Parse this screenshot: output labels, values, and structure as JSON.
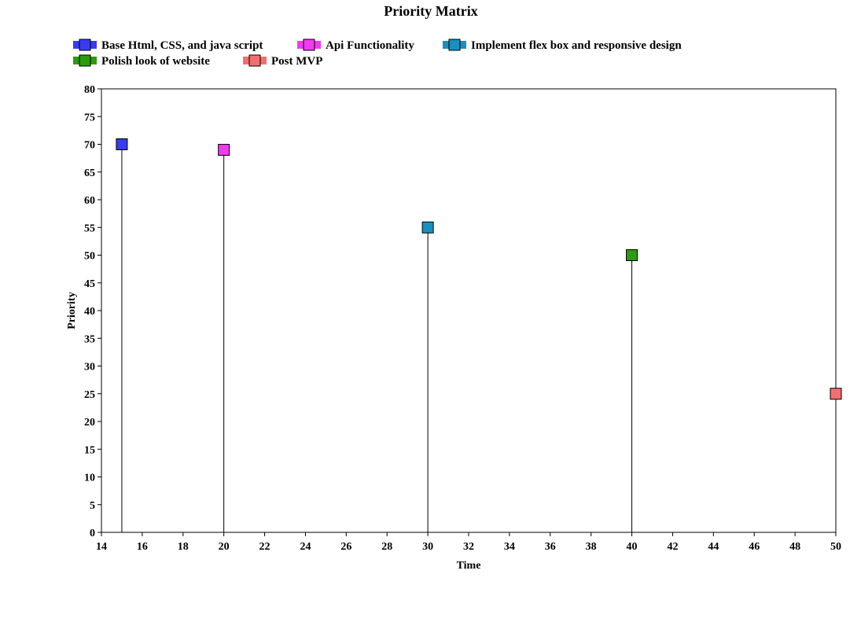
{
  "chart_data": {
    "type": "scatter",
    "title": "Priority Matrix",
    "xlabel": "Time",
    "ylabel": "Priority",
    "xlim": [
      14,
      50
    ],
    "ylim": [
      0,
      80
    ],
    "x_ticks": [
      14,
      16,
      18,
      20,
      22,
      24,
      26,
      28,
      30,
      32,
      34,
      36,
      38,
      40,
      42,
      44,
      46,
      48,
      50
    ],
    "y_ticks": [
      0,
      5,
      10,
      15,
      20,
      25,
      30,
      35,
      40,
      45,
      50,
      55,
      60,
      65,
      70,
      75,
      80
    ],
    "grid": false,
    "drop_lines": true,
    "legend_position": "top-left",
    "series": [
      {
        "name": "Base Html, CSS, and java script",
        "color": "#3a3af0",
        "marker": "square",
        "x": [
          15
        ],
        "y": [
          70
        ]
      },
      {
        "name": "Api Functionality",
        "color": "#f03af0",
        "marker": "square",
        "x": [
          20
        ],
        "y": [
          69
        ]
      },
      {
        "name": "Implement flex box and responsive design",
        "color": "#1a8fc0",
        "marker": "square",
        "x": [
          30
        ],
        "y": [
          55
        ]
      },
      {
        "name": "Polish look of website",
        "color": "#2e9a10",
        "marker": "square",
        "x": [
          40
        ],
        "y": [
          50
        ]
      },
      {
        "name": "Post MVP",
        "color": "#f07070",
        "marker": "square",
        "x": [
          50
        ],
        "y": [
          25
        ]
      }
    ]
  }
}
